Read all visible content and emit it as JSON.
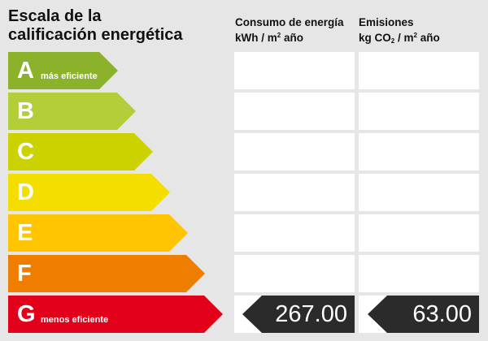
{
  "title": {
    "line1": "Escala de la",
    "line2": "calificación energética"
  },
  "columns": {
    "consumo": {
      "line1": "Consumo de energía",
      "unit_pre": "kWh / m",
      "unit_sup": "2",
      "unit_post": " año"
    },
    "emisiones": {
      "line1": "Emisiones",
      "unit_pre": "kg CO",
      "unit_sub": "2",
      "unit_mid": " / m",
      "unit_sup": "2",
      "unit_post": " año"
    }
  },
  "ratings": [
    {
      "letter": "A",
      "label": "más eficiente",
      "color": "#8bb22a"
    },
    {
      "letter": "B",
      "label": "",
      "color": "#b2cf39"
    },
    {
      "letter": "C",
      "label": "",
      "color": "#cbd200"
    },
    {
      "letter": "D",
      "label": "",
      "color": "#f4de00"
    },
    {
      "letter": "E",
      "label": "",
      "color": "#ffc500"
    },
    {
      "letter": "F",
      "label": "",
      "color": "#ef7d00"
    },
    {
      "letter": "G",
      "label": "menos eficiente",
      "color": "#e3001b"
    }
  ],
  "result": {
    "rating": "G",
    "consumo_value": "267.00",
    "emisiones_value": "63.00",
    "indicator_color": "#2b2b2b"
  }
}
